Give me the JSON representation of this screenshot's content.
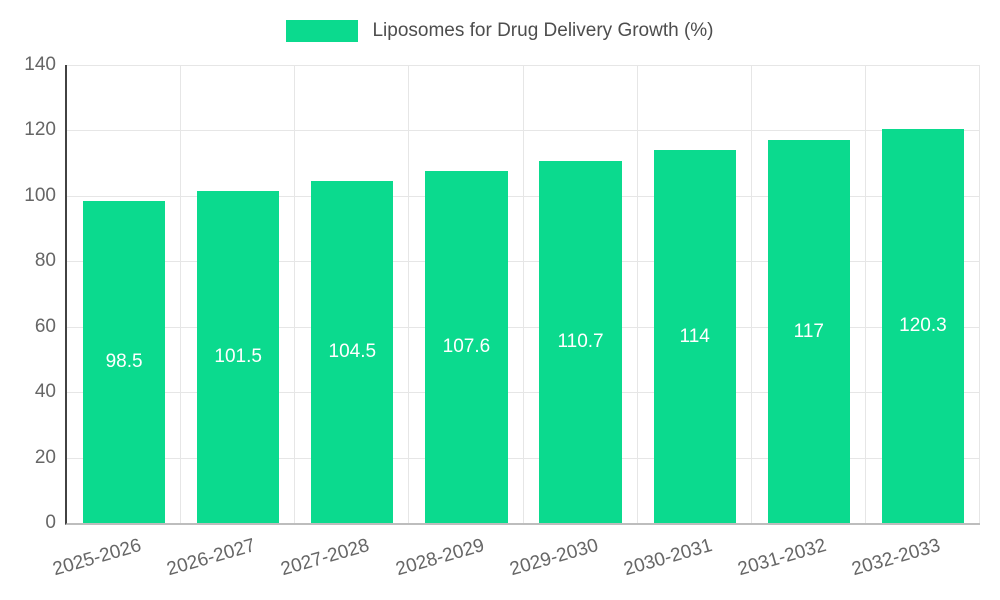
{
  "chart_data": {
    "type": "bar",
    "title": "Liposomes for Drug Delivery Growth (%)",
    "categories": [
      "2025-2026",
      "2026-2027",
      "2027-2028",
      "2028-2029",
      "2029-2030",
      "2030-2031",
      "2031-2032",
      "2032-2033"
    ],
    "values": [
      98.5,
      101.5,
      104.5,
      107.6,
      110.7,
      114,
      117,
      120.3
    ],
    "value_labels": [
      "98.5",
      "101.5",
      "104.5",
      "107.6",
      "110.7",
      "114",
      "117",
      "120.3"
    ],
    "xlabel": "",
    "ylabel": "",
    "ylim": [
      0,
      140
    ],
    "yticks": [
      0,
      20,
      40,
      60,
      80,
      100,
      120,
      140
    ],
    "grid": true,
    "legend_position": "top",
    "colors": {
      "bar": "#0bda8e",
      "value_label_text": "#ffffff",
      "tick_text": "#666666",
      "legend_text": "#4d4d4d",
      "gridline": "#e6e6e6",
      "y_axis_line": "#424242",
      "x_axis_line": "#bdbdbd"
    }
  }
}
